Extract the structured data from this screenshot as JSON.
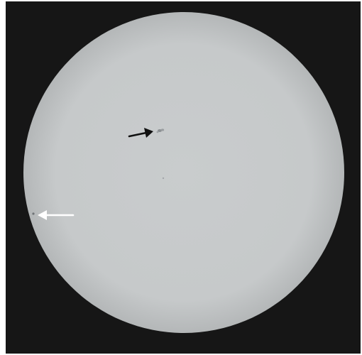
{
  "image": {
    "background_color": "#161616",
    "sun_color": "#c6c9ca",
    "sun_edge_color": "#b4b7b8",
    "sunspot_color": "#8c9093",
    "arrows": [
      {
        "color": "#111111",
        "points_to": "sunspot-group"
      },
      {
        "color": "#ffffff",
        "points_to": "limb-sunspot"
      }
    ]
  }
}
